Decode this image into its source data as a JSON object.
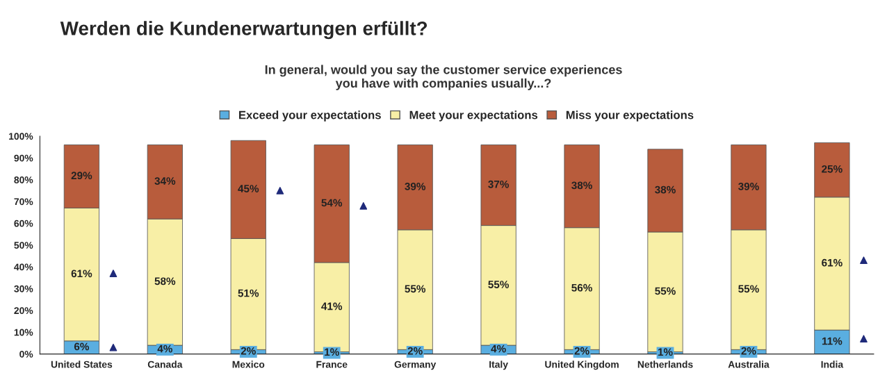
{
  "chart_data": {
    "type": "bar",
    "stacked": true,
    "title": "Werden die Kundenerwartungen erfüllt?",
    "subtitle": "In general, would you say the customer service experiences\nyou have with companies usually...?",
    "categories": [
      "United States",
      "Canada",
      "Mexico",
      "France",
      "Germany",
      "Italy",
      "United Kingdom",
      "Netherlands",
      "Australia",
      "India"
    ],
    "series": [
      {
        "name": "Exceed your expectations",
        "color": "#5aaee0",
        "values": [
          6,
          4,
          2,
          1,
          2,
          4,
          2,
          1,
          2,
          11
        ],
        "value_labels": [
          "6%",
          "4%",
          "2%",
          "1%",
          "2%",
          "4%",
          "2%",
          "1%",
          "2%",
          "11%"
        ]
      },
      {
        "name": "Meet your expectations",
        "color": "#f8efa6",
        "values": [
          61,
          58,
          51,
          41,
          55,
          55,
          56,
          55,
          55,
          61
        ],
        "value_labels": [
          "61%",
          "58%",
          "51%",
          "41%",
          "55%",
          "55%",
          "56%",
          "55%",
          "55%",
          "61%"
        ]
      },
      {
        "name": "Miss your expectations",
        "color": "#b85c3c",
        "values": [
          29,
          34,
          45,
          54,
          39,
          37,
          38,
          38,
          39,
          25
        ],
        "value_labels": [
          "29%",
          "34%",
          "45%",
          "54%",
          "39%",
          "37%",
          "38%",
          "38%",
          "39%",
          "25%"
        ]
      },
      {
        "type": "scatter",
        "marker": "triangle",
        "color": "#1f2a7a",
        "x": [
          "United States",
          "Mexico",
          "France",
          "India"
        ],
        "values": [
          37,
          75,
          68,
          43
        ]
      },
      {
        "type": "scatter",
        "marker": "triangle",
        "color": "#1f2a7a",
        "x": [
          "United States",
          "India"
        ],
        "values": [
          3,
          7
        ]
      }
    ],
    "ylim": [
      0,
      100
    ],
    "yticks": [
      {
        "value": 0,
        "label": "0%"
      },
      {
        "value": 10,
        "label": "10%"
      },
      {
        "value": 20,
        "label": "20%"
      },
      {
        "value": 30,
        "label": "30%"
      },
      {
        "value": 40,
        "label": "40%"
      },
      {
        "value": 50,
        "label": "50%"
      },
      {
        "value": 60,
        "label": "60%"
      },
      {
        "value": 70,
        "label": "70%"
      },
      {
        "value": 80,
        "label": "80%"
      },
      {
        "value": 90,
        "label": "90%"
      },
      {
        "value": 100,
        "label": "100%"
      }
    ],
    "grid": false,
    "legend": "top"
  }
}
